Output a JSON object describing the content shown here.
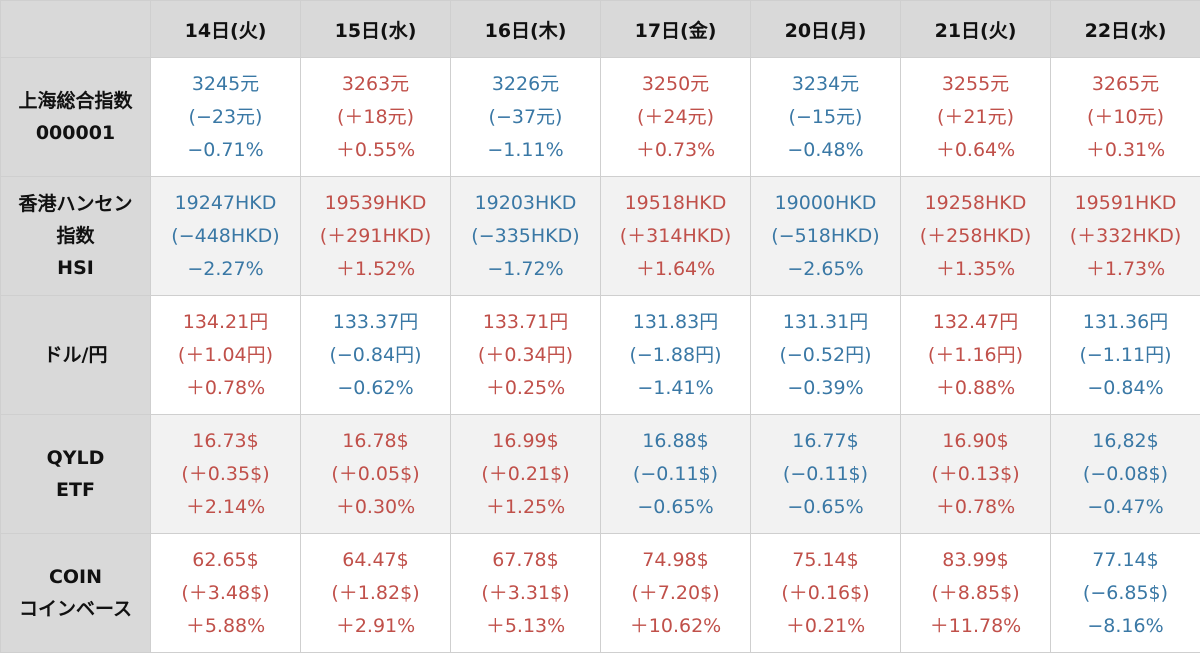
{
  "colors": {
    "down": "#3a78a5",
    "up": "#c0504a",
    "header_bg": "#d9d9d9"
  },
  "header": {
    "corner": "",
    "days": [
      "14日(火)",
      "15日(水)",
      "16日(木)",
      "17日(金)",
      "20日(月)",
      "21日(火)",
      "22日(水)"
    ]
  },
  "rows": [
    {
      "label": [
        "上海総合指数",
        "000001"
      ],
      "cells": [
        {
          "trend": "down",
          "price": "3245元",
          "change": "(−23元)",
          "pct": "−0.71%"
        },
        {
          "trend": "up",
          "price": "3263元",
          "change": "(＋18元)",
          "pct": "＋0.55%"
        },
        {
          "trend": "down",
          "price": "3226元",
          "change": "(−37元)",
          "pct": "−1.11%"
        },
        {
          "trend": "up",
          "price": "3250元",
          "change": "(＋24元)",
          "pct": "＋0.73%"
        },
        {
          "trend": "down",
          "price": "3234元",
          "change": "(−15元)",
          "pct": "−0.48%"
        },
        {
          "trend": "up",
          "price": "3255元",
          "change": "(＋21元)",
          "pct": "＋0.64%"
        },
        {
          "trend": "up",
          "price": "3265元",
          "change": "(＋10元)",
          "pct": "＋0.31%"
        }
      ]
    },
    {
      "label": [
        "香港ハンセン",
        "指数",
        "HSI"
      ],
      "cells": [
        {
          "trend": "down",
          "price": "19247HKD",
          "change": "(−448HKD)",
          "pct": "−2.27%"
        },
        {
          "trend": "up",
          "price": "19539HKD",
          "change": "(＋291HKD)",
          "pct": "＋1.52%"
        },
        {
          "trend": "down",
          "price": "19203HKD",
          "change": "(−335HKD)",
          "pct": "−1.72%"
        },
        {
          "trend": "up",
          "price": "19518HKD",
          "change": "(＋314HKD)",
          "pct": "＋1.64%"
        },
        {
          "trend": "down",
          "price": "19000HKD",
          "change": "(−518HKD)",
          "pct": "−2.65%"
        },
        {
          "trend": "up",
          "price": "19258HKD",
          "change": "(＋258HKD)",
          "pct": "＋1.35%"
        },
        {
          "trend": "up",
          "price": "19591HKD",
          "change": "(＋332HKD)",
          "pct": "＋1.73%"
        }
      ]
    },
    {
      "label": [
        "ドル/円"
      ],
      "cells": [
        {
          "trend": "up",
          "price": "134.21円",
          "change": "(＋1.04円)",
          "pct": "＋0.78%"
        },
        {
          "trend": "down",
          "price": "133.37円",
          "change": "(−0.84円)",
          "pct": "−0.62%"
        },
        {
          "trend": "up",
          "price": "133.71円",
          "change": "(＋0.34円)",
          "pct": "＋0.25%"
        },
        {
          "trend": "down",
          "price": "131.83円",
          "change": "(−1.88円)",
          "pct": "−1.41%"
        },
        {
          "trend": "down",
          "price": "131.31円",
          "change": "(−0.52円)",
          "pct": "−0.39%"
        },
        {
          "trend": "up",
          "price": "132.47円",
          "change": "(＋1.16円)",
          "pct": "＋0.88%"
        },
        {
          "trend": "down",
          "price": "131.36円",
          "change": "(−1.11円)",
          "pct": "−0.84%"
        }
      ]
    },
    {
      "label": [
        "QYLD",
        "ETF"
      ],
      "cells": [
        {
          "trend": "up",
          "price": "16.73$",
          "change": "(＋0.35$)",
          "pct": "＋2.14%"
        },
        {
          "trend": "up",
          "price": "16.78$",
          "change": "(＋0.05$)",
          "pct": "＋0.30%"
        },
        {
          "trend": "up",
          "price": "16.99$",
          "change": "(＋0.21$)",
          "pct": "＋1.25%"
        },
        {
          "trend": "down",
          "price": "16.88$",
          "change": "(−0.11$)",
          "pct": "−0.65%"
        },
        {
          "trend": "down",
          "price": "16.77$",
          "change": "(−0.11$)",
          "pct": "−0.65%"
        },
        {
          "trend": "up",
          "price": "16.90$",
          "change": "(＋0.13$)",
          "pct": "＋0.78%"
        },
        {
          "trend": "down",
          "price": "16,82$",
          "change": "(−0.08$)",
          "pct": "−0.47%"
        }
      ]
    },
    {
      "label": [
        "COIN",
        "コインベース"
      ],
      "cells": [
        {
          "trend": "up",
          "price": "62.65$",
          "change": "(＋3.48$)",
          "pct": "＋5.88%"
        },
        {
          "trend": "up",
          "price": "64.47$",
          "change": "(＋1.82$)",
          "pct": "＋2.91%"
        },
        {
          "trend": "up",
          "price": "67.78$",
          "change": "(＋3.31$)",
          "pct": "＋5.13%"
        },
        {
          "trend": "up",
          "price": "74.98$",
          "change": "(＋7.20$)",
          "pct": "＋10.62%"
        },
        {
          "trend": "up",
          "price": "75.14$",
          "change": "(＋0.16$)",
          "pct": "＋0.21%"
        },
        {
          "trend": "up",
          "price": "83.99$",
          "change": "(＋8.85$)",
          "pct": "＋11.78%"
        },
        {
          "trend": "down",
          "price": "77.14$",
          "change": "(−6.85$)",
          "pct": "−8.16%"
        }
      ]
    }
  ]
}
